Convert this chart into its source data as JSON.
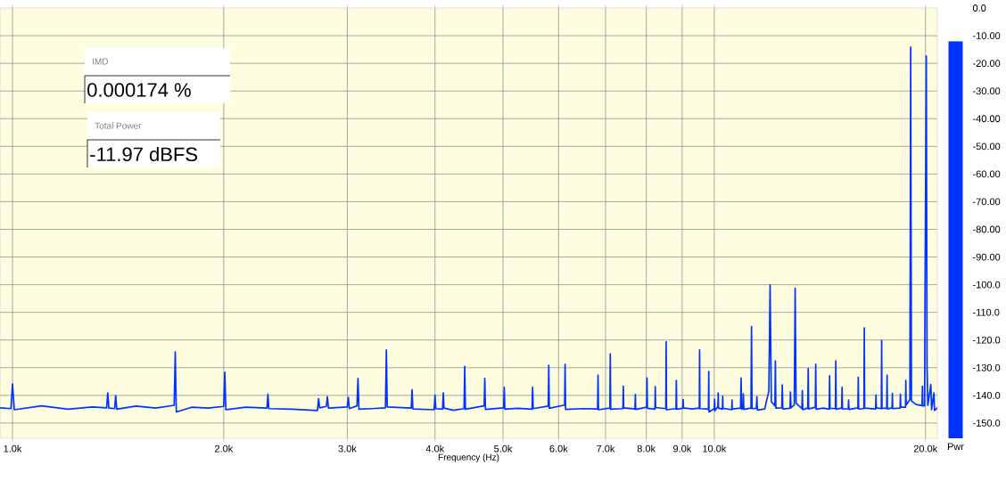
{
  "chart_data": [
    {
      "type": "line",
      "xlabel": "Frequency (Hz)",
      "color": "#0033ff",
      "log": "x",
      "grid": true,
      "tick_labels": "x",
      "xlim": [
        960,
        20790
      ],
      "ylim": [
        -155.5,
        0
      ],
      "xticks": [
        {
          "value": 1000,
          "label": "1.0k"
        },
        {
          "value": 2000,
          "label": "2.0k"
        },
        {
          "value": 3000,
          "label": "3.0k"
        },
        {
          "value": 4000,
          "label": "4.0k"
        },
        {
          "value": 5000,
          "label": "5.0k"
        },
        {
          "value": 6000,
          "label": "6.0k"
        },
        {
          "value": 7000,
          "label": "7.0k"
        },
        {
          "value": 8000,
          "label": "8.0k"
        },
        {
          "value": 9000,
          "label": "9.0k"
        },
        {
          "value": 10000,
          "label": "10.0k"
        },
        {
          "value": 20000,
          "label": "20.0k"
        }
      ],
      "yticks": [
        {
          "value": -10,
          "label": null
        },
        {
          "value": -20,
          "label": null
        },
        {
          "value": -30,
          "label": null
        },
        {
          "value": -40,
          "label": null
        },
        {
          "value": -50,
          "label": null
        },
        {
          "value": -60,
          "label": null
        },
        {
          "value": -70,
          "label": null
        },
        {
          "value": -80,
          "label": null
        },
        {
          "value": -90,
          "label": null
        },
        {
          "value": -100,
          "label": null
        },
        {
          "value": -110,
          "label": null
        },
        {
          "value": -120,
          "label": null
        },
        {
          "value": -130,
          "label": null
        },
        {
          "value": -140,
          "label": null
        },
        {
          "value": -150,
          "label": null
        }
      ],
      "annotations": [
        "IMD",
        "0.000174 %",
        "Total Power",
        "-11.97 dBFS"
      ],
      "x": [
        960,
        995,
        1000,
        1006,
        1100,
        1200,
        1300,
        1362,
        1367,
        1372,
        1398,
        1403,
        1408,
        1500,
        1600,
        1700,
        1706,
        1712,
        1800,
        1900,
        2000,
        2007,
        2014,
        2150,
        2305,
        2312,
        2319,
        2500,
        2720,
        2730,
        2740,
        2800,
        2810,
        2820,
        3000,
        3010,
        3020,
        3097,
        3107,
        3117,
        3250,
        3400,
        3410,
        3420,
        3700,
        3710,
        3720,
        3990,
        4000,
        4010,
        4100,
        4110,
        4120,
        4250,
        4400,
        4410,
        4420,
        4700,
        4710,
        4720,
        5010,
        5020,
        5030,
        5250,
        5500,
        5510,
        5520,
        5800,
        5810,
        5820,
        6120,
        6130,
        6140,
        6500,
        6820,
        6830,
        6840,
        7100,
        7110,
        7120,
        7410,
        7420,
        7430,
        7710,
        7720,
        7730,
        8010,
        8020,
        8030,
        8230,
        8240,
        8250,
        8530,
        8540,
        8550,
        8820,
        8830,
        8840,
        9020,
        9030,
        9040,
        9300,
        9520,
        9530,
        9540,
        9810,
        9820,
        9830,
        10000,
        10010,
        10020,
        10120,
        10130,
        10140,
        10270,
        10280,
        10290,
        10590,
        10600,
        10610,
        10900,
        10920,
        10940,
        10990,
        11000,
        11020,
        11280,
        11300,
        11320,
        11480,
        11500,
        11520,
        11800,
        11960,
        12010,
        12060,
        12200,
        12220,
        12240,
        12480,
        12500,
        12520,
        12820,
        12840,
        12860,
        13000,
        13040,
        13080,
        13330,
        13350,
        13370,
        13590,
        13610,
        13630,
        13930,
        13950,
        13970,
        14300,
        14580,
        14600,
        14620,
        14880,
        14900,
        14920,
        15190,
        15210,
        15230,
        15520,
        15540,
        15560,
        16020,
        16040,
        16060,
        16340,
        16360,
        16380,
        16980,
        17000,
        17020,
        17300,
        17320,
        17340,
        17610,
        17630,
        17650,
        17920,
        17940,
        17960,
        18400,
        18420,
        18440,
        18730,
        18750,
        18770,
        19000,
        19050,
        19100,
        19400,
        19780,
        19800,
        19820,
        19940,
        19960,
        20050,
        20100,
        20150,
        20350,
        20400,
        20560,
        20600,
        20790
      ],
      "values": [
        -144.5,
        -144.8,
        -135.9,
        -145.2,
        -143.8,
        -145.0,
        -144.2,
        -144.5,
        -139.1,
        -144.6,
        -144.8,
        -140.1,
        -145.0,
        -143.9,
        -144.6,
        -143.6,
        -124.3,
        -146.0,
        -144.3,
        -144.6,
        -144.0,
        -131.6,
        -145.2,
        -144.3,
        -144.6,
        -139.6,
        -144.8,
        -145.0,
        -145.5,
        -141.2,
        -144.5,
        -144.0,
        -140.5,
        -144.6,
        -144.2,
        -140.7,
        -144.8,
        -143.8,
        -133.9,
        -145.0,
        -144.8,
        -144.5,
        -123.6,
        -144.2,
        -144.6,
        -138.0,
        -144.9,
        -145.2,
        -139.9,
        -144.8,
        -145.0,
        -139.1,
        -144.6,
        -145.4,
        -144.8,
        -129.5,
        -145.0,
        -143.8,
        -133.9,
        -145.1,
        -144.5,
        -137.1,
        -145.0,
        -144.7,
        -145.0,
        -137.1,
        -144.8,
        -143.9,
        -129.1,
        -144.7,
        -143.5,
        -128.8,
        -145.1,
        -144.8,
        -144.9,
        -132.7,
        -145.2,
        -144.6,
        -125.0,
        -145.0,
        -144.8,
        -136.7,
        -144.5,
        -144.9,
        -139.7,
        -145.1,
        -144.3,
        -133.7,
        -144.7,
        -145.0,
        -136.9,
        -144.4,
        -144.8,
        -120.6,
        -145.2,
        -144.8,
        -134.6,
        -145.0,
        -144.7,
        -141.5,
        -144.5,
        -144.9,
        -144.6,
        -123.6,
        -144.8,
        -145.0,
        -131.4,
        -146.0,
        -144.8,
        -141.4,
        -145.6,
        -144.0,
        -139.1,
        -144.6,
        -145.0,
        -140.3,
        -144.7,
        -145.2,
        -141.7,
        -144.9,
        -144.6,
        -133.7,
        -145.0,
        -144.8,
        -139.4,
        -145.1,
        -144.6,
        -115.1,
        -144.8,
        -144.7,
        -140.5,
        -145.3,
        -144.9,
        -138.5,
        -100.1,
        -142.3,
        -143.8,
        -127.5,
        -144.6,
        -144.5,
        -136.2,
        -144.9,
        -144.7,
        -138.8,
        -144.5,
        -143.5,
        -101.3,
        -142.8,
        -144.8,
        -138.3,
        -145.2,
        -144.6,
        -130.3,
        -144.9,
        -144.3,
        -128.7,
        -145.0,
        -144.6,
        -145.0,
        -132.9,
        -144.7,
        -144.8,
        -127.5,
        -145.0,
        -144.6,
        -137.1,
        -144.9,
        -144.8,
        -141.7,
        -145.1,
        -144.5,
        -133.5,
        -144.9,
        -144.8,
        -115.6,
        -144.6,
        -144.9,
        -139.9,
        -144.5,
        -144.8,
        -120.1,
        -144.6,
        -144.7,
        -132.7,
        -144.9,
        -144.5,
        -139.3,
        -144.8,
        -144.6,
        -139.6,
        -144.3,
        -144.3,
        -134.6,
        -143.5,
        -141.5,
        -14.1,
        -142.0,
        -143.3,
        -143.7,
        -136.7,
        -143.8,
        -143.8,
        -115.1,
        -17.3,
        -129.0,
        -143.6,
        -136.1,
        -145.2,
        -139.1,
        -145.5,
        -144.5
      ]
    },
    {
      "type": "bar",
      "categories": [
        "Pwr"
      ],
      "base": [
        -155.5
      ],
      "values": [
        143.5
      ],
      "color": "#0033ff",
      "ylim": [
        -155.5,
        0
      ],
      "yticks": [
        {
          "value": 0,
          "label": "0.0"
        },
        {
          "value": -10,
          "label": "-10.00"
        },
        {
          "value": -20,
          "label": "-20.00"
        },
        {
          "value": -30,
          "label": "-30.00"
        },
        {
          "value": -40,
          "label": "-40.00"
        },
        {
          "value": -50,
          "label": "-50.00"
        },
        {
          "value": -60,
          "label": "-60.00"
        },
        {
          "value": -70,
          "label": "-70.00"
        },
        {
          "value": -80,
          "label": "-80.00"
        },
        {
          "value": -90,
          "label": "-90.00"
        },
        {
          "value": -100,
          "label": "-100.0"
        },
        {
          "value": -110,
          "label": "-110.0"
        },
        {
          "value": -120,
          "label": "-120.0"
        },
        {
          "value": -130,
          "label": "-130.0"
        },
        {
          "value": -140,
          "label": "-140.0"
        },
        {
          "value": -150,
          "label": "-150.0"
        }
      ]
    }
  ]
}
